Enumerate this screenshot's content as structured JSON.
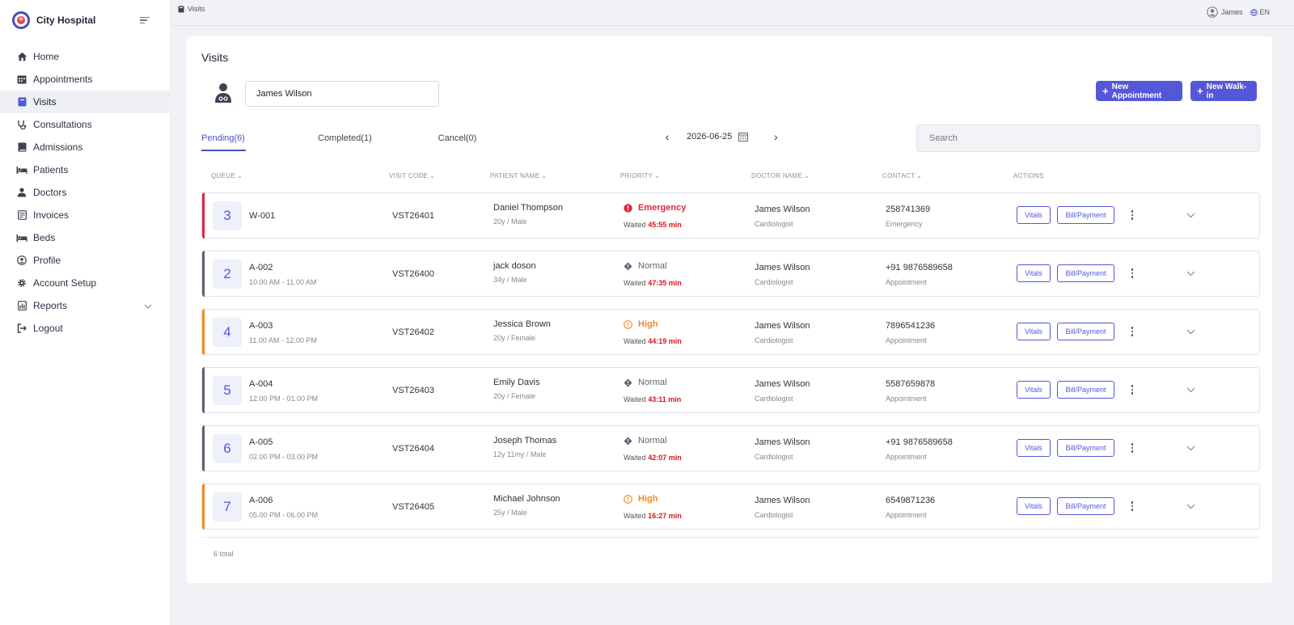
{
  "app": {
    "name": "City Hospital"
  },
  "colors": {
    "accent": "#5458d8",
    "emergency": "#e0263c",
    "high": "#f08a24",
    "normal": "#5a6275",
    "waited": "#d9161d"
  },
  "sidebar": {
    "items": [
      {
        "label": "Home",
        "icon": "home-icon"
      },
      {
        "label": "Appointments",
        "icon": "calendar-icon"
      },
      {
        "label": "Visits",
        "icon": "visits-icon",
        "active": true
      },
      {
        "label": "Consultations",
        "icon": "stethoscope-icon"
      },
      {
        "label": "Admissions",
        "icon": "book-icon"
      },
      {
        "label": "Patients",
        "icon": "bed-icon"
      },
      {
        "label": "Doctors",
        "icon": "doctor-icon"
      },
      {
        "label": "Invoices",
        "icon": "invoice-icon"
      },
      {
        "label": "Beds",
        "icon": "bed-icon"
      },
      {
        "label": "Profile",
        "icon": "profile-icon"
      },
      {
        "label": "Account Setup",
        "icon": "gear-icon"
      },
      {
        "label": "Reports",
        "icon": "reports-icon",
        "expandable": true
      },
      {
        "label": "Logout",
        "icon": "logout-icon"
      }
    ]
  },
  "topbar": {
    "breadcrumb": "Visits",
    "user": "James",
    "language": "EN"
  },
  "page": {
    "title": "Visits",
    "doctor": "James Wilson",
    "new_appointment": "New Appointment",
    "new_walkin": "New Walk-in",
    "tabs": [
      {
        "label": "Pending(6)",
        "active": true
      },
      {
        "label": "Completed(1)"
      },
      {
        "label": "Cancel(0)"
      }
    ],
    "date": "2026-06-25",
    "search_placeholder": "Search",
    "columns": [
      "QUEUE",
      "VISIT CODE",
      "PATIENT NAME",
      "PRIORITY",
      "DOCTOR NAME",
      "CONTACT",
      "ACTIONS"
    ],
    "vitals_label": "Vitals",
    "bill_label": "Bill/Payment",
    "waited_label": "Waited",
    "total": "6 total"
  },
  "rows": [
    {
      "queue": "3",
      "code": "W-001",
      "slot": "",
      "visit_code": "VST26401",
      "patient": "Daniel Thompson",
      "patient_info": "20y / Male",
      "priority": "Emergency",
      "waited": "45:55 min",
      "doctor": "James Wilson",
      "specialty": "Cardiologist",
      "contact": "258741369",
      "contact_type": "Emergency"
    },
    {
      "queue": "2",
      "code": "A-002",
      "slot": "10.00 AM - 11.00 AM",
      "visit_code": "VST26400",
      "patient": "jack doson",
      "patient_info": "34y / Male",
      "priority": "Normal",
      "waited": "47:35 min",
      "doctor": "James Wilson",
      "specialty": "Cardiologist",
      "contact": "+91 9876589658",
      "contact_type": "Appointment"
    },
    {
      "queue": "4",
      "code": "A-003",
      "slot": "11.00 AM - 12.00 PM",
      "visit_code": "VST26402",
      "patient": "Jessica Brown",
      "patient_info": "20y / Female",
      "priority": "High",
      "waited": "44:19 min",
      "doctor": "James Wilson",
      "specialty": "Cardiologist",
      "contact": "7896541236",
      "contact_type": "Appointment"
    },
    {
      "queue": "5",
      "code": "A-004",
      "slot": "12.00 PM - 01.00 PM",
      "visit_code": "VST26403",
      "patient": "Emily Davis",
      "patient_info": "20y / Female",
      "priority": "Normal",
      "waited": "43:11 min",
      "doctor": "James Wilson",
      "specialty": "Cardiologist",
      "contact": "5587659878",
      "contact_type": "Appointment"
    },
    {
      "queue": "6",
      "code": "A-005",
      "slot": "02.00 PM - 03.00 PM",
      "visit_code": "VST26404",
      "patient": "Joseph Thomas",
      "patient_info": "12y 11my / Male",
      "priority": "Normal",
      "waited": "42:07 min",
      "doctor": "James Wilson",
      "specialty": "Cardiologist",
      "contact": "+91 9876589658",
      "contact_type": "Appointment"
    },
    {
      "queue": "7",
      "code": "A-006",
      "slot": "05.00 PM - 06.00 PM",
      "visit_code": "VST26405",
      "patient": "Michael Johnson",
      "patient_info": "25y / Male",
      "priority": "High",
      "waited": "16:27 min",
      "doctor": "James Wilson",
      "specialty": "Cardiologist",
      "contact": "6549871236",
      "contact_type": "Appointment"
    }
  ]
}
